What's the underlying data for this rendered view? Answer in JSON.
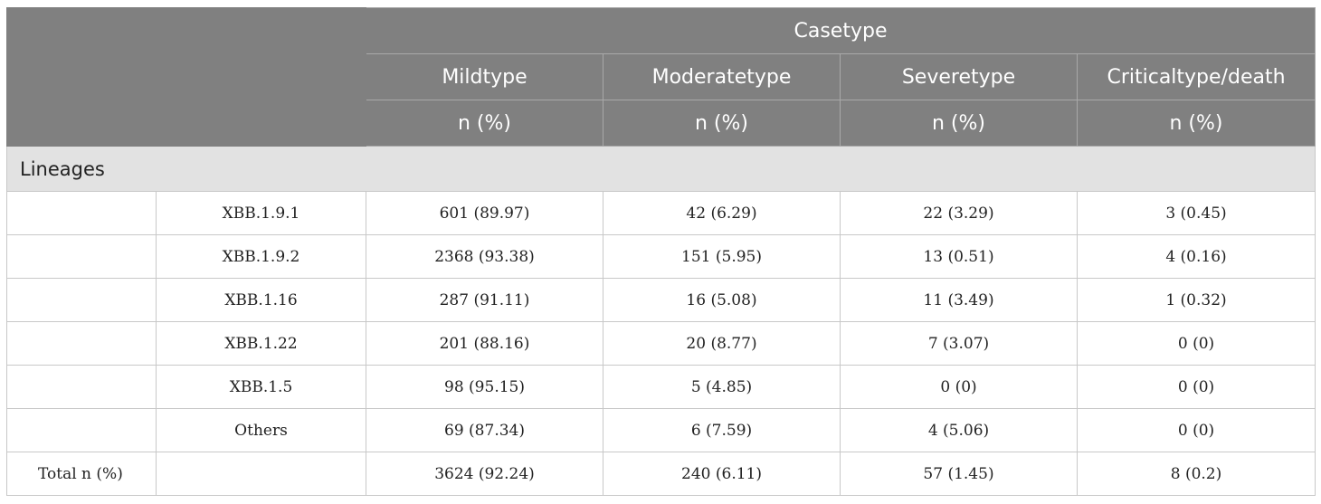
{
  "table": {
    "header": {
      "group_label": "Casetype",
      "columns": [
        "Mildtype",
        "Moderatetype",
        "Severetype",
        "Criticaltype/death"
      ],
      "unit": "n (%)"
    },
    "section_label": "Lineages",
    "rows": [
      {
        "lineage": "XBB.1.9.1",
        "values": [
          "601 (89.97)",
          "42 (6.29)",
          "22 (3.29)",
          "3 (0.45)"
        ]
      },
      {
        "lineage": "XBB.1.9.2",
        "values": [
          "2368 (93.38)",
          "151 (5.95)",
          "13 (0.51)",
          "4 (0.16)"
        ]
      },
      {
        "lineage": "XBB.1.16",
        "values": [
          "287 (91.11)",
          "16 (5.08)",
          "11 (3.49)",
          "1 (0.32)"
        ]
      },
      {
        "lineage": "XBB.1.22",
        "values": [
          "201 (88.16)",
          "20 (8.77)",
          "7 (3.07)",
          "0 (0)"
        ]
      },
      {
        "lineage": "XBB.1.5",
        "values": [
          "98 (95.15)",
          "5 (4.85)",
          "0 (0)",
          "0 (0)"
        ]
      },
      {
        "lineage": "Others",
        "values": [
          "69 (87.34)",
          "6 (7.59)",
          "4 (5.06)",
          "0 (0)"
        ]
      }
    ],
    "total": {
      "label": "Total n (%)",
      "values": [
        "3624 (92.24)",
        "240 (6.11)",
        "57 (1.45)",
        "8 (0.2)"
      ]
    }
  }
}
